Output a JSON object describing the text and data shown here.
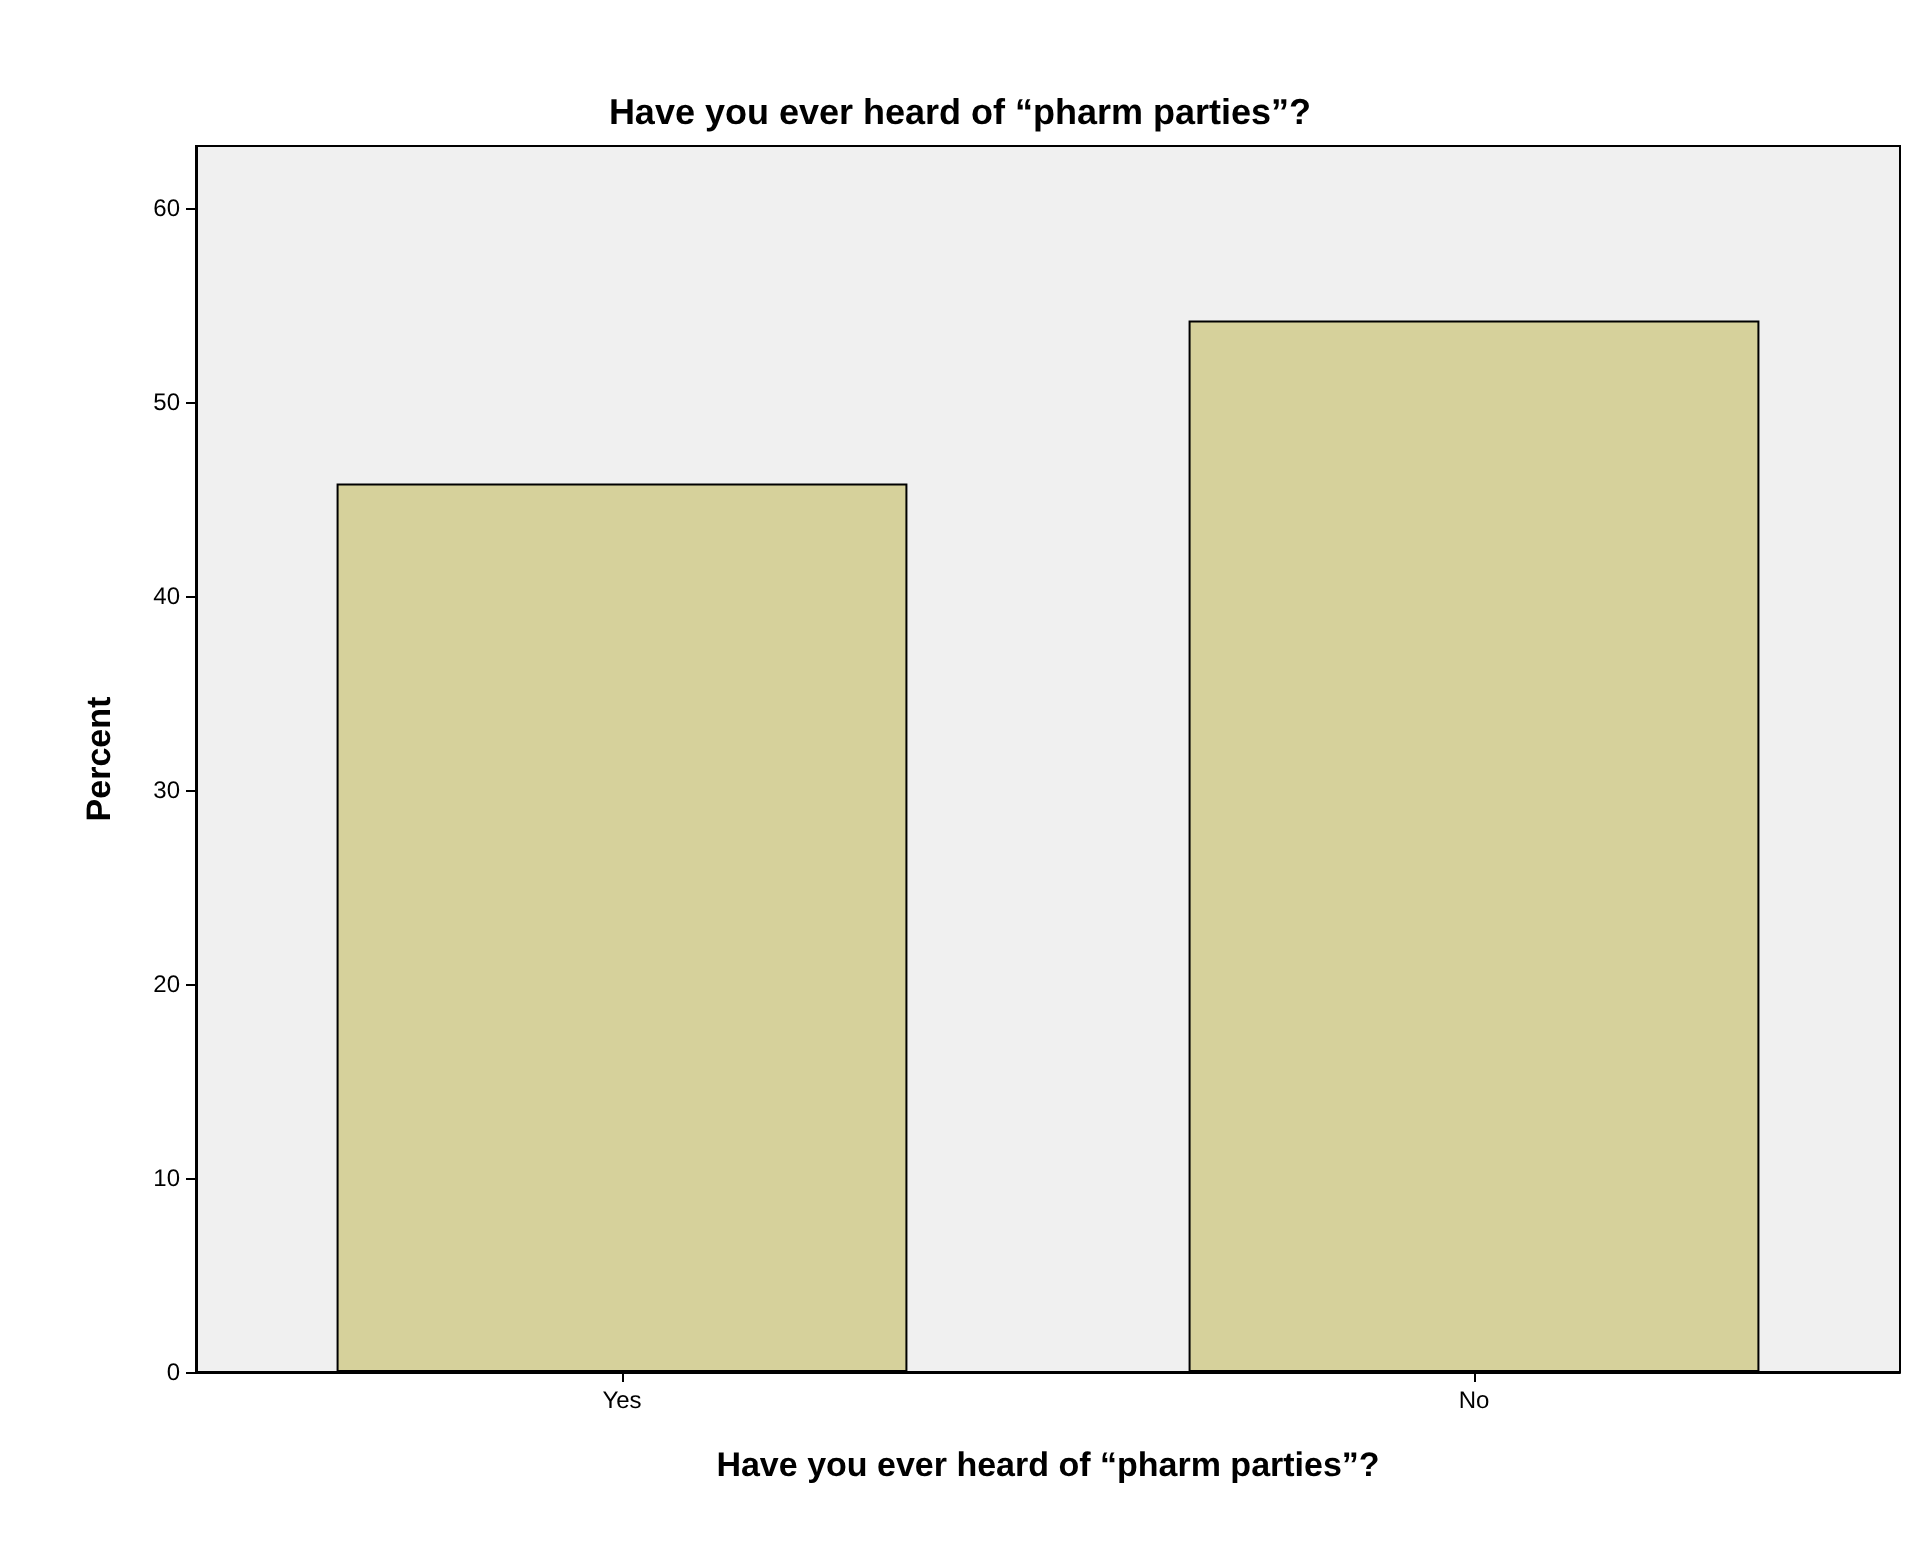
{
  "chart_data": {
    "type": "bar",
    "title": "Have you ever heard of “pharm parties”?",
    "xlabel": "Have you ever heard of “pharm parties”?",
    "ylabel": "Percent",
    "categories": [
      "Yes",
      "No"
    ],
    "values": [
      45.8,
      54.2
    ],
    "color": "#d6d19b",
    "ylim": [
      0,
      63.2
    ],
    "yticks": [
      0,
      10,
      20,
      30,
      40,
      50,
      60
    ],
    "grid": false
  }
}
